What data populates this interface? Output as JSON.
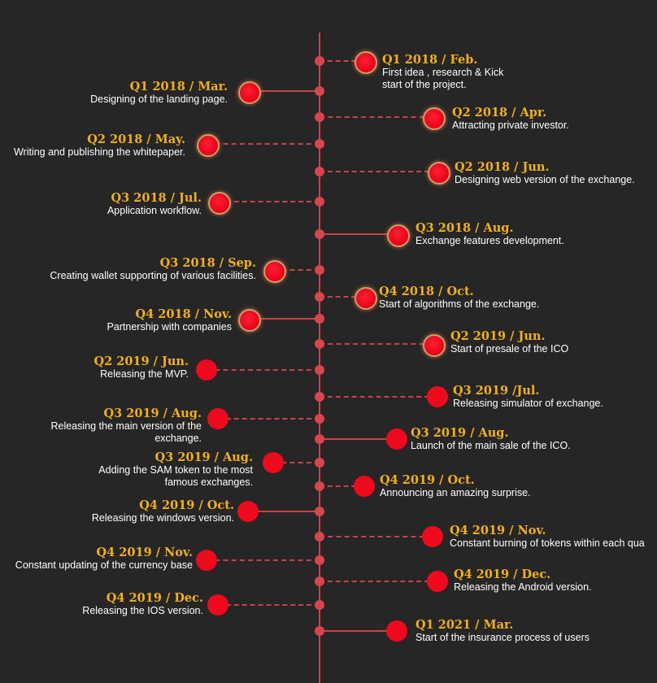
{
  "colors": {
    "background": "#262626",
    "axis": "#c9444a",
    "date_text": "#f2b01b",
    "description_text": "#ffffff",
    "milestone_node": "#ee0a1c"
  },
  "milestones": [
    {
      "date": "Q1 2018 / Feb.",
      "text": "First idea , research & Kick start of  the project.",
      "side": "right",
      "link": "dashed"
    },
    {
      "date": "Q1 2018 / Mar.",
      "text": "Designing of the landing page.",
      "side": "left",
      "link": "solid"
    },
    {
      "date": "Q2 2018 / Apr.",
      "text": "Attracting private investor.",
      "side": "right",
      "link": "dashed"
    },
    {
      "date": "Q2 2018 / May.",
      "text": "Writing and publishing the whitepaper.",
      "side": "left",
      "link": "dashed"
    },
    {
      "date": "Q2 2018 / Jun.",
      "text": "Designing web version of the exchange.",
      "side": "right",
      "link": "dashed"
    },
    {
      "date": "Q3 2018 / Jul.",
      "text": "Application workflow.",
      "side": "left",
      "link": "dashed"
    },
    {
      "date": "Q3 2018 / Aug.",
      "text": "Exchange features development.",
      "side": "right",
      "link": "solid"
    },
    {
      "date": "Q3 2018 / Sep.",
      "text": "Creating wallet supporting of various facilities.",
      "side": "left",
      "link": "dashed"
    },
    {
      "date": "Q4 2018 / Oct.",
      "text": "Start of algorithms of the exchange.",
      "side": "right",
      "link": "dashed"
    },
    {
      "date": "Q4 2018 / Nov.",
      "text": "Partnership with companies",
      "side": "left",
      "link": "solid"
    },
    {
      "date": "Q2 2019 / Jun.",
      "text": "Start of presale of the ICO",
      "side": "right",
      "link": "dashed"
    },
    {
      "date": "Q2 2019 / Jun.",
      "text": "Releasing the MVP.",
      "side": "left",
      "link": "dashed"
    },
    {
      "date": "Q3 2019 /Jul.",
      "text": "Releasing simulator of exchange.",
      "side": "right",
      "link": "dashed"
    },
    {
      "date": "Q3 2019 / Aug.",
      "text": "Releasing the main version of the exchange.",
      "side": "left",
      "link": "dashed"
    },
    {
      "date": "Q3 2019 / Aug.",
      "text": "Launch of the main sale of the ICO.",
      "side": "right",
      "link": "solid"
    },
    {
      "date": "Q3 2019 / Aug.",
      "text": "Adding the SAM token to the most famous exchanges.",
      "side": "left",
      "link": "dashed"
    },
    {
      "date": "Q4 2019 / Oct.",
      "text": "Announcing an amazing surprise.",
      "side": "right",
      "link": "dashed"
    },
    {
      "date": "Q4 2019 / Oct.",
      "text": "Releasing the windows version.",
      "side": "left",
      "link": "solid"
    },
    {
      "date": "Q4 2019 / Nov.",
      "text": "Constant burning of tokens within each qua",
      "side": "right",
      "link": "dashed"
    },
    {
      "date": "Q4 2019 / Nov.",
      "text": "Constant updating of the currency base",
      "side": "left",
      "link": "dashed"
    },
    {
      "date": "Q4 2019 / Dec.",
      "text": "Releasing the Android version.",
      "side": "right",
      "link": "dashed"
    },
    {
      "date": "Q4 2019 / Dec.",
      "text": "Releasing the IOS version.",
      "side": "left",
      "link": "dashed"
    },
    {
      "date": "Q1 2021 / Mar.",
      "text": "Start of the insurance process of users",
      "side": "right",
      "link": "solid"
    }
  ]
}
